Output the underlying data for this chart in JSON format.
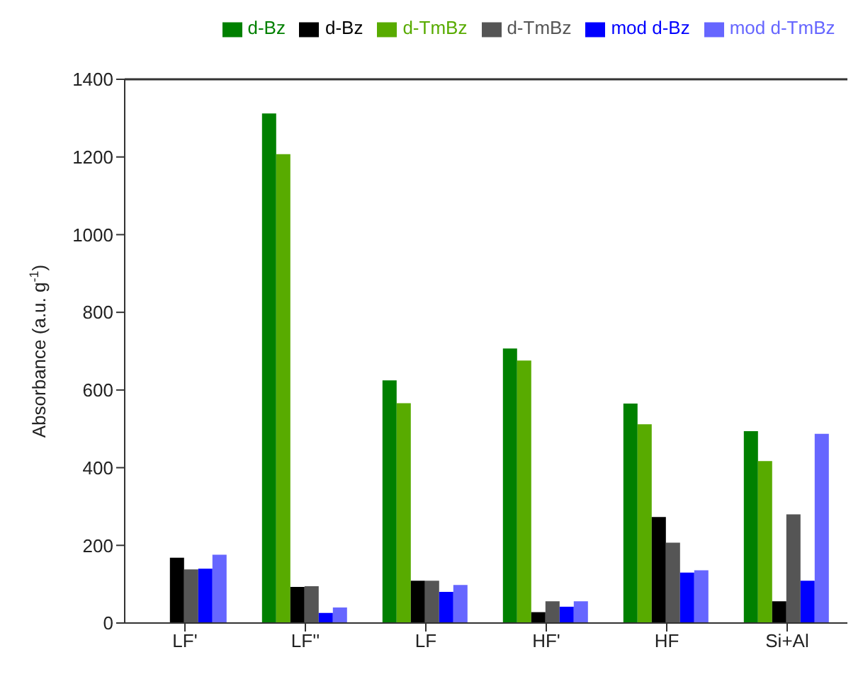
{
  "chart_data": {
    "type": "bar",
    "ylabel": "Absorbance (a.u. g$^{-1}$)",
    "categories": [
      "LF'",
      "LF''",
      "LF",
      "HF'",
      "HF",
      "Si+Al"
    ],
    "series": [
      {
        "name": "d-Bz",
        "color": "#008000",
        "values": [
          null,
          1312,
          625,
          707,
          565,
          494
        ]
      },
      {
        "name": "d-TmBz",
        "color": "#58ab00",
        "values": [
          null,
          1207,
          566,
          676,
          512,
          417
        ]
      },
      {
        "name": "d-Bz",
        "color": "#000000",
        "values": [
          168,
          93,
          109,
          28,
          273,
          56
        ]
      },
      {
        "name": "d-TmBz",
        "color": "#555555",
        "values": [
          138,
          95,
          109,
          56,
          207,
          280
        ]
      },
      {
        "name": "mod d-Bz",
        "color": "#0000ff",
        "values": [
          140,
          26,
          80,
          42,
          130,
          109
        ]
      },
      {
        "name": "mod d-TmBz",
        "color": "#6666ff",
        "values": [
          176,
          40,
          98,
          56,
          136,
          487
        ]
      }
    ],
    "ylim": [
      0,
      1400
    ],
    "yticks": [
      0,
      200,
      400,
      600,
      800,
      1000,
      1200,
      1400
    ],
    "legend": "top",
    "grid": false
  }
}
